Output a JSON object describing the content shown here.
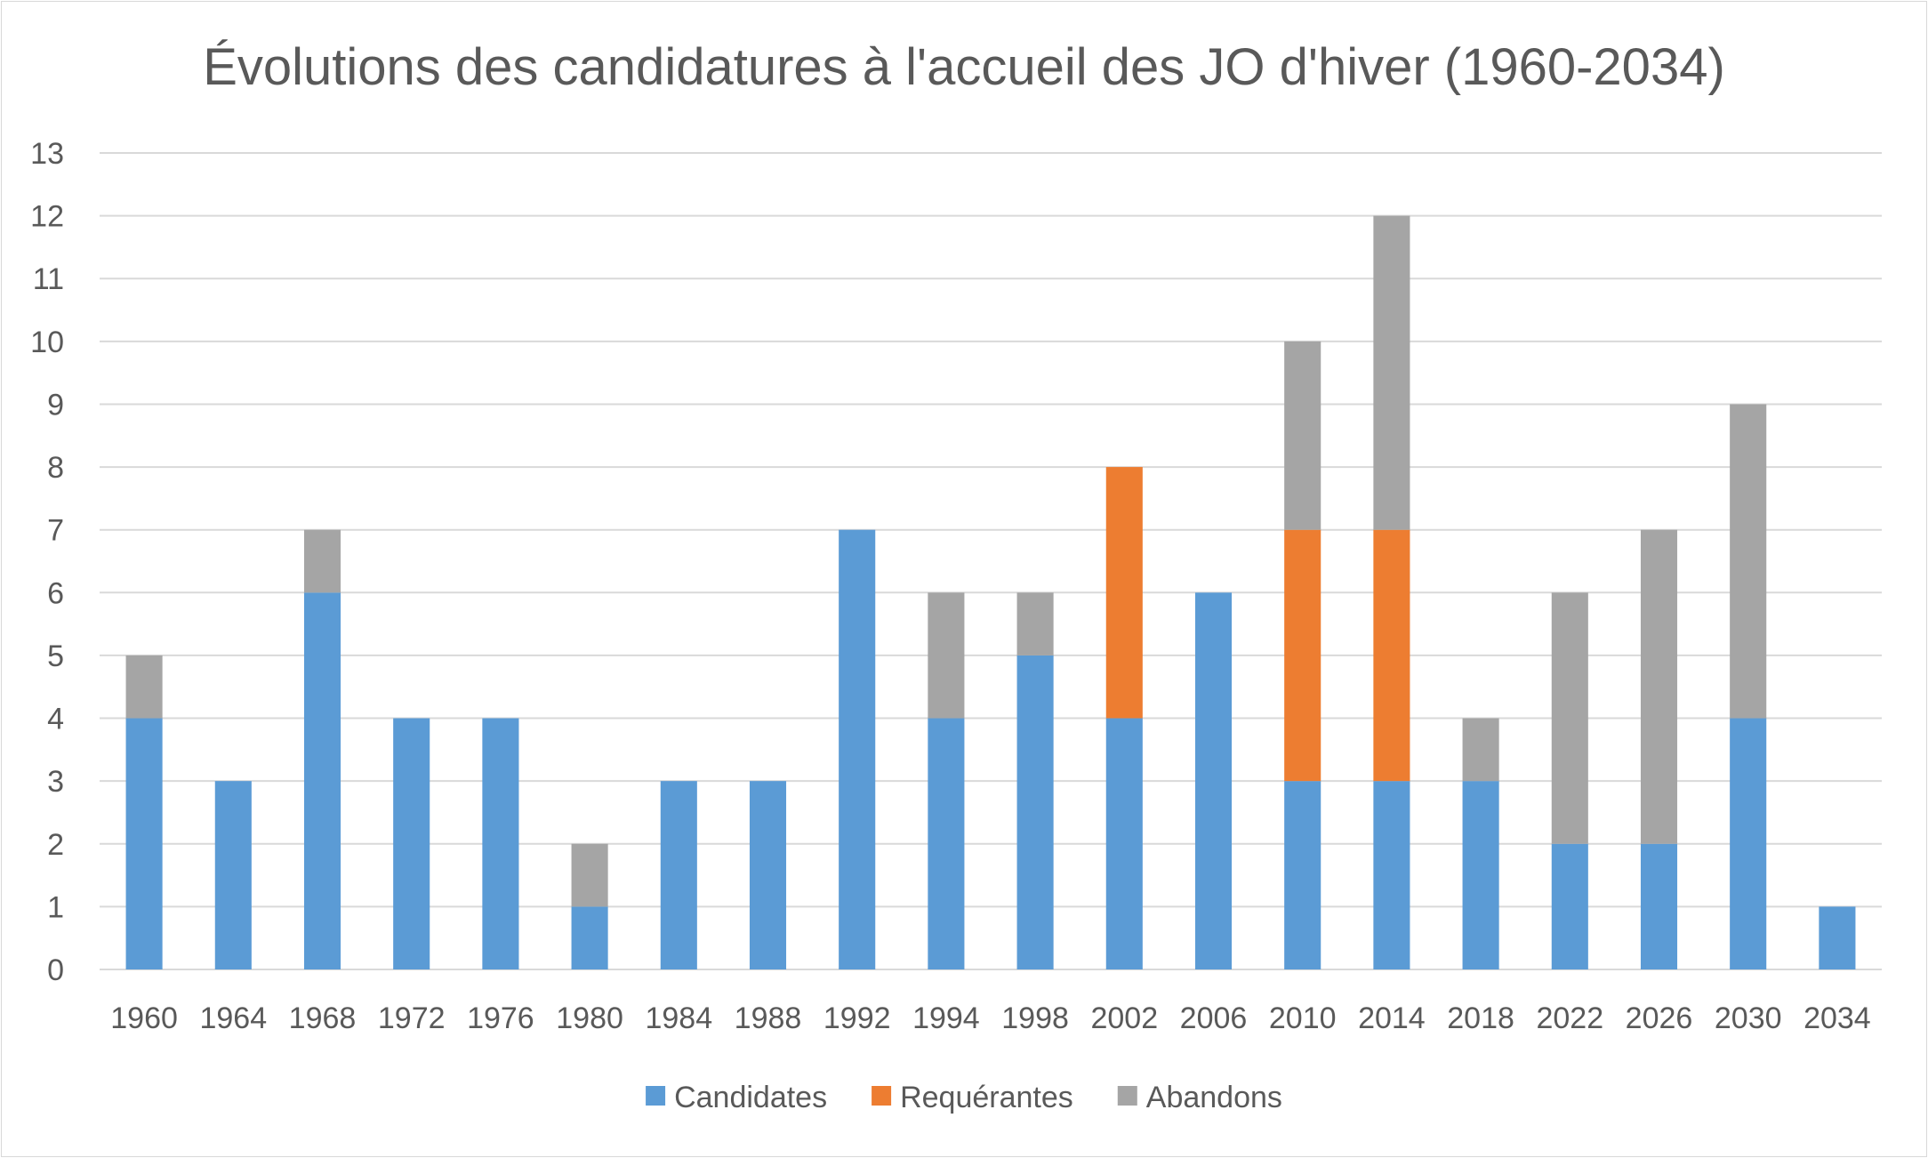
{
  "chart_data": {
    "type": "bar",
    "stacked": true,
    "title": "Évolutions des candidatures à l'accueil des JO d'hiver (1960-2034)",
    "xlabel": "",
    "ylabel": "",
    "ylim": [
      0,
      13
    ],
    "yticks": [
      0,
      1,
      2,
      3,
      4,
      5,
      6,
      7,
      8,
      9,
      10,
      11,
      12,
      13
    ],
    "grid": true,
    "legend_position": "bottom",
    "categories": [
      "1960",
      "1964",
      "1968",
      "1972",
      "1976",
      "1980",
      "1984",
      "1988",
      "1992",
      "1994",
      "1998",
      "2002",
      "2006",
      "2010",
      "2014",
      "2018",
      "2022",
      "2026",
      "2030",
      "2034"
    ],
    "series": [
      {
        "name": "Candidates",
        "color": "#5b9bd5",
        "values": [
          4,
          3,
          6,
          4,
          4,
          1,
          3,
          3,
          7,
          4,
          5,
          4,
          6,
          3,
          3,
          3,
          2,
          2,
          4,
          1
        ]
      },
      {
        "name": "Requérantes",
        "color": "#ed7d31",
        "values": [
          0,
          0,
          0,
          0,
          0,
          0,
          0,
          0,
          0,
          0,
          0,
          4,
          0,
          4,
          4,
          0,
          0,
          0,
          0,
          0
        ]
      },
      {
        "name": "Abandons",
        "color": "#a5a5a5",
        "values": [
          1,
          0,
          1,
          0,
          0,
          1,
          0,
          0,
          0,
          2,
          1,
          0,
          0,
          3,
          5,
          1,
          4,
          5,
          5,
          0
        ]
      }
    ]
  }
}
